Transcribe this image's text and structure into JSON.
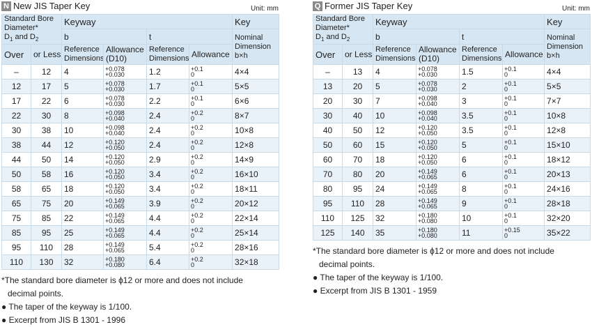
{
  "unit_label": "Unit: mm",
  "headers": {
    "bore": [
      "Standard Bore",
      "Diameter*",
      "D",
      "1",
      " and D",
      "2"
    ],
    "keyway": "Keyway",
    "key": "Key",
    "b": "b",
    "t": "t",
    "ref_dims": [
      "Reference",
      "Dimensions"
    ],
    "allowance_d10": [
      "Allowance",
      "(D10)"
    ],
    "allowance": "Allowance",
    "nominal": [
      "Nominal",
      "Dimension",
      "b×h"
    ],
    "over": "Over",
    "or_less": "or Less"
  },
  "new_table": {
    "badge": "N",
    "title": "New JIS Taper Key",
    "rows": [
      {
        "over": "–",
        "less": "12",
        "b": "4",
        "ba": [
          "+0.078",
          "+0.030"
        ],
        "t": "1.2",
        "ta": [
          "+0.1",
          "0"
        ],
        "key": "4×4"
      },
      {
        "over": "12",
        "less": "17",
        "b": "5",
        "ba": [
          "+0.078",
          "+0.030"
        ],
        "t": "1.7",
        "ta": [
          "+0.1",
          "0"
        ],
        "key": "5×5"
      },
      {
        "over": "17",
        "less": "22",
        "b": "6",
        "ba": [
          "+0.078",
          "+0.030"
        ],
        "t": "2.2",
        "ta": [
          "+0.1",
          "0"
        ],
        "key": "6×6"
      },
      {
        "over": "22",
        "less": "30",
        "b": "8",
        "ba": [
          "+0.098",
          "+0.040"
        ],
        "t": "2.4",
        "ta": [
          "+0.2",
          "0"
        ],
        "key": "8×7"
      },
      {
        "over": "30",
        "less": "38",
        "b": "10",
        "ba": [
          "+0.098",
          "+0.040"
        ],
        "t": "2.4",
        "ta": [
          "+0.2",
          "0"
        ],
        "key": "10×8"
      },
      {
        "over": "38",
        "less": "44",
        "b": "12",
        "ba": [
          "+0.120",
          "+0.050"
        ],
        "t": "2.4",
        "ta": [
          "+0.2",
          "0"
        ],
        "key": "12×8"
      },
      {
        "over": "44",
        "less": "50",
        "b": "14",
        "ba": [
          "+0.120",
          "+0.050"
        ],
        "t": "2.9",
        "ta": [
          "+0.2",
          "0"
        ],
        "key": "14×9"
      },
      {
        "over": "50",
        "less": "58",
        "b": "16",
        "ba": [
          "+0.120",
          "+0.050"
        ],
        "t": "3.4",
        "ta": [
          "+0.2",
          "0"
        ],
        "key": "16×10"
      },
      {
        "over": "58",
        "less": "65",
        "b": "18",
        "ba": [
          "+0.120",
          "+0.050"
        ],
        "t": "3.4",
        "ta": [
          "+0.2",
          "0"
        ],
        "key": "18×11"
      },
      {
        "over": "65",
        "less": "75",
        "b": "20",
        "ba": [
          "+0.149",
          "+0.065"
        ],
        "t": "3.9",
        "ta": [
          "+0.2",
          "0"
        ],
        "key": "20×12"
      },
      {
        "over": "75",
        "less": "85",
        "b": "22",
        "ba": [
          "+0.149",
          "+0.065"
        ],
        "t": "4.4",
        "ta": [
          "+0.2",
          "0"
        ],
        "key": "22×14"
      },
      {
        "over": "85",
        "less": "95",
        "b": "25",
        "ba": [
          "+0.149",
          "+0.065"
        ],
        "t": "4.4",
        "ta": [
          "+0.2",
          "0"
        ],
        "key": "25×14"
      },
      {
        "over": "95",
        "less": "110",
        "b": "28",
        "ba": [
          "+0.149",
          "+0.065"
        ],
        "t": "5.4",
        "ta": [
          "+0.2",
          "0"
        ],
        "key": "28×16"
      },
      {
        "over": "110",
        "less": "130",
        "b": "32",
        "ba": [
          "+0.180",
          "+0.080"
        ],
        "t": "6.4",
        "ta": [
          "+0.2",
          "0"
        ],
        "key": "32×18"
      }
    ],
    "notes": [
      {
        "text": "*The standard bore diameter is ϕ12 or more and does not include",
        "indent": false
      },
      {
        "text": "decimal points.",
        "indent": true
      },
      {
        "text": "● The taper of the keyway is 1/100.",
        "indent": false
      },
      {
        "text": "● Excerpt from JIS B 1301 - 1996",
        "indent": false
      }
    ]
  },
  "old_table": {
    "badge": "Q",
    "title": "Former JIS Taper Key",
    "rows": [
      {
        "over": "–",
        "less": "13",
        "b": "4",
        "ba": [
          "+0.078",
          "+0.030"
        ],
        "t": "1.5",
        "ta": [
          "+0.1",
          "0"
        ],
        "key": "4×4"
      },
      {
        "over": "13",
        "less": "20",
        "b": "5",
        "ba": [
          "+0.078",
          "+0.030"
        ],
        "t": "2",
        "ta": [
          "+0.1",
          "0"
        ],
        "key": "5×5"
      },
      {
        "over": "20",
        "less": "30",
        "b": "7",
        "ba": [
          "+0.098",
          "+0.040"
        ],
        "t": "3",
        "ta": [
          "+0.1",
          "0"
        ],
        "key": "7×7"
      },
      {
        "over": "30",
        "less": "40",
        "b": "10",
        "ba": [
          "+0.098",
          "+0.040"
        ],
        "t": "3.5",
        "ta": [
          "+0.1",
          "0"
        ],
        "key": "10×8"
      },
      {
        "over": "40",
        "less": "50",
        "b": "12",
        "ba": [
          "+0.120",
          "+0.050"
        ],
        "t": "3.5",
        "ta": [
          "+0.1",
          "0"
        ],
        "key": "12×8"
      },
      {
        "over": "50",
        "less": "60",
        "b": "15",
        "ba": [
          "+0.120",
          "+0.050"
        ],
        "t": "5",
        "ta": [
          "+0.1",
          "0"
        ],
        "key": "15×10"
      },
      {
        "over": "60",
        "less": "70",
        "b": "18",
        "ba": [
          "+0.120",
          "+0.050"
        ],
        "t": "6",
        "ta": [
          "+0.1",
          "0"
        ],
        "key": "18×12"
      },
      {
        "over": "70",
        "less": "80",
        "b": "20",
        "ba": [
          "+0.149",
          "+0.065"
        ],
        "t": "6",
        "ta": [
          "+0.1",
          "0"
        ],
        "key": "20×13"
      },
      {
        "over": "80",
        "less": "95",
        "b": "24",
        "ba": [
          "+0.149",
          "+0.065"
        ],
        "t": "8",
        "ta": [
          "+0.1",
          "0"
        ],
        "key": "24×16"
      },
      {
        "over": "95",
        "less": "110",
        "b": "28",
        "ba": [
          "+0.149",
          "+0.065"
        ],
        "t": "9",
        "ta": [
          "+0.1",
          "0"
        ],
        "key": "28×18"
      },
      {
        "over": "110",
        "less": "125",
        "b": "32",
        "ba": [
          "+0.180",
          "+0.080"
        ],
        "t": "10",
        "ta": [
          "+0.1",
          "0"
        ],
        "key": "32×20"
      },
      {
        "over": "125",
        "less": "140",
        "b": "35",
        "ba": [
          "+0.180",
          "+0.080"
        ],
        "t": "11",
        "ta": [
          "+0.15",
          "0"
        ],
        "key": "35×22"
      }
    ],
    "notes": [
      {
        "text": "*The standard bore diameter is ϕ12 or more and does not include",
        "indent": false
      },
      {
        "text": "decimal points.",
        "indent": true
      },
      {
        "text": "● The taper of the keyway is 1/100.",
        "indent": false
      },
      {
        "text": "● Excerpt from JIS B 1301 - 1959",
        "indent": false
      }
    ]
  }
}
